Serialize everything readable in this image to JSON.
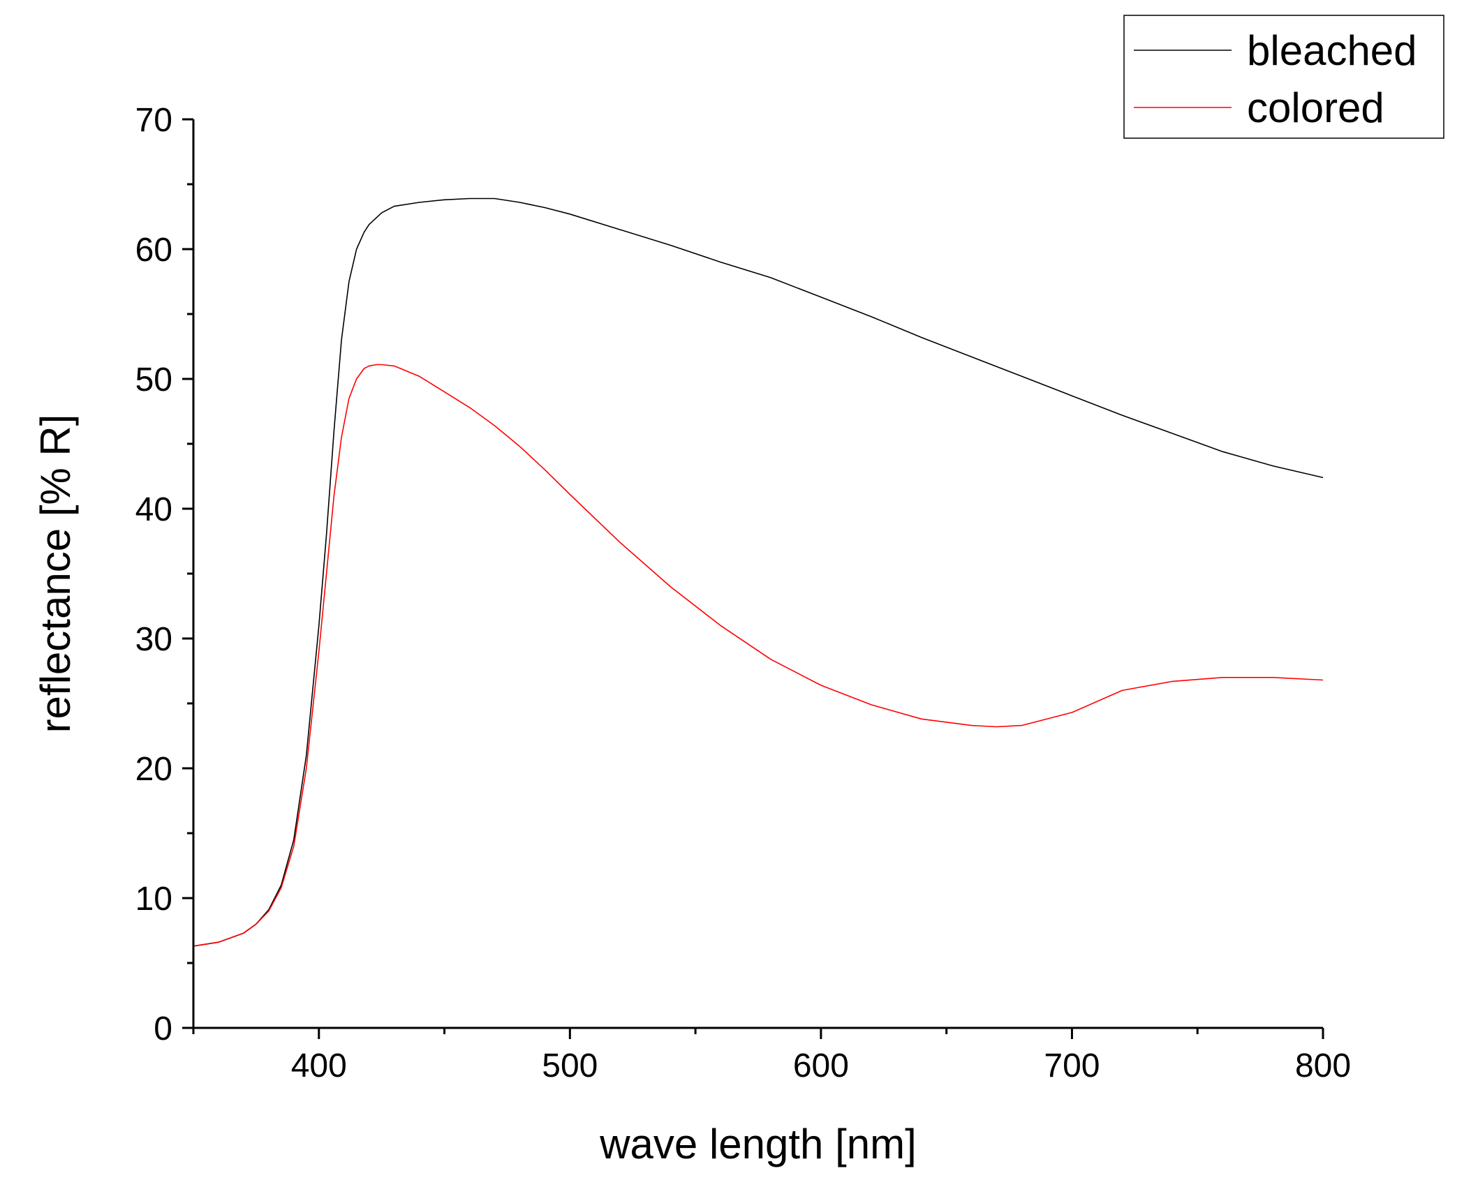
{
  "chart_data": {
    "type": "line",
    "title": "",
    "xlabel": "wave length [nm]",
    "ylabel": "reflectance [% R]",
    "xlim": [
      350,
      800
    ],
    "ylim": [
      0,
      70
    ],
    "x_ticks": [
      400,
      500,
      600,
      700,
      800
    ],
    "x_tick_labels": [
      "400",
      "500",
      "600",
      "700",
      "800"
    ],
    "y_ticks": [
      0,
      10,
      20,
      30,
      40,
      50,
      60,
      70
    ],
    "y_tick_labels": [
      "0",
      "10",
      "20",
      "30",
      "40",
      "50",
      "60",
      "70"
    ],
    "x_minor_ticks": [
      350,
      450,
      550,
      650,
      750
    ],
    "y_minor_ticks": [
      5,
      15,
      25,
      35,
      45,
      55,
      65
    ],
    "grid": false,
    "legend_position": "top-right",
    "series": [
      {
        "name": "bleached",
        "color": "#000000",
        "x": [
          350,
          360,
          370,
          375,
          380,
          385,
          390,
          395,
          400,
          403,
          406,
          409,
          412,
          415,
          418,
          420,
          425,
          430,
          440,
          450,
          460,
          470,
          480,
          490,
          500,
          520,
          540,
          560,
          580,
          600,
          620,
          640,
          660,
          680,
          700,
          720,
          740,
          760,
          780,
          800
        ],
        "y": [
          6.3,
          6.6,
          7.3,
          8.0,
          9.1,
          11.0,
          14.5,
          21.0,
          31.0,
          38.0,
          46.0,
          53.0,
          57.5,
          60.0,
          61.3,
          61.9,
          62.8,
          63.3,
          63.6,
          63.8,
          63.9,
          63.9,
          63.6,
          63.2,
          62.7,
          61.5,
          60.3,
          59.0,
          57.8,
          56.3,
          54.8,
          53.2,
          51.7,
          50.2,
          48.7,
          47.2,
          45.8,
          44.4,
          43.3,
          42.4
        ]
      },
      {
        "name": "colored",
        "color": "#ff0000",
        "x": [
          350,
          360,
          370,
          375,
          380,
          385,
          390,
          395,
          400,
          403,
          406,
          409,
          412,
          415,
          418,
          420,
          423,
          425,
          430,
          440,
          450,
          460,
          470,
          480,
          490,
          500,
          520,
          540,
          560,
          580,
          600,
          620,
          640,
          660,
          670,
          680,
          700,
          720,
          740,
          760,
          780,
          800
        ],
        "y": [
          6.3,
          6.6,
          7.3,
          8.0,
          9.0,
          10.8,
          14.0,
          20.0,
          29.0,
          35.0,
          41.0,
          45.5,
          48.5,
          50.0,
          50.8,
          51.0,
          51.1,
          51.1,
          51.0,
          50.2,
          49.0,
          47.8,
          46.4,
          44.8,
          43.0,
          41.1,
          37.4,
          34.0,
          31.0,
          28.4,
          26.4,
          24.9,
          23.8,
          23.3,
          23.2,
          23.3,
          24.3,
          26.0,
          26.7,
          27.0,
          27.0,
          26.8
        ]
      }
    ]
  }
}
